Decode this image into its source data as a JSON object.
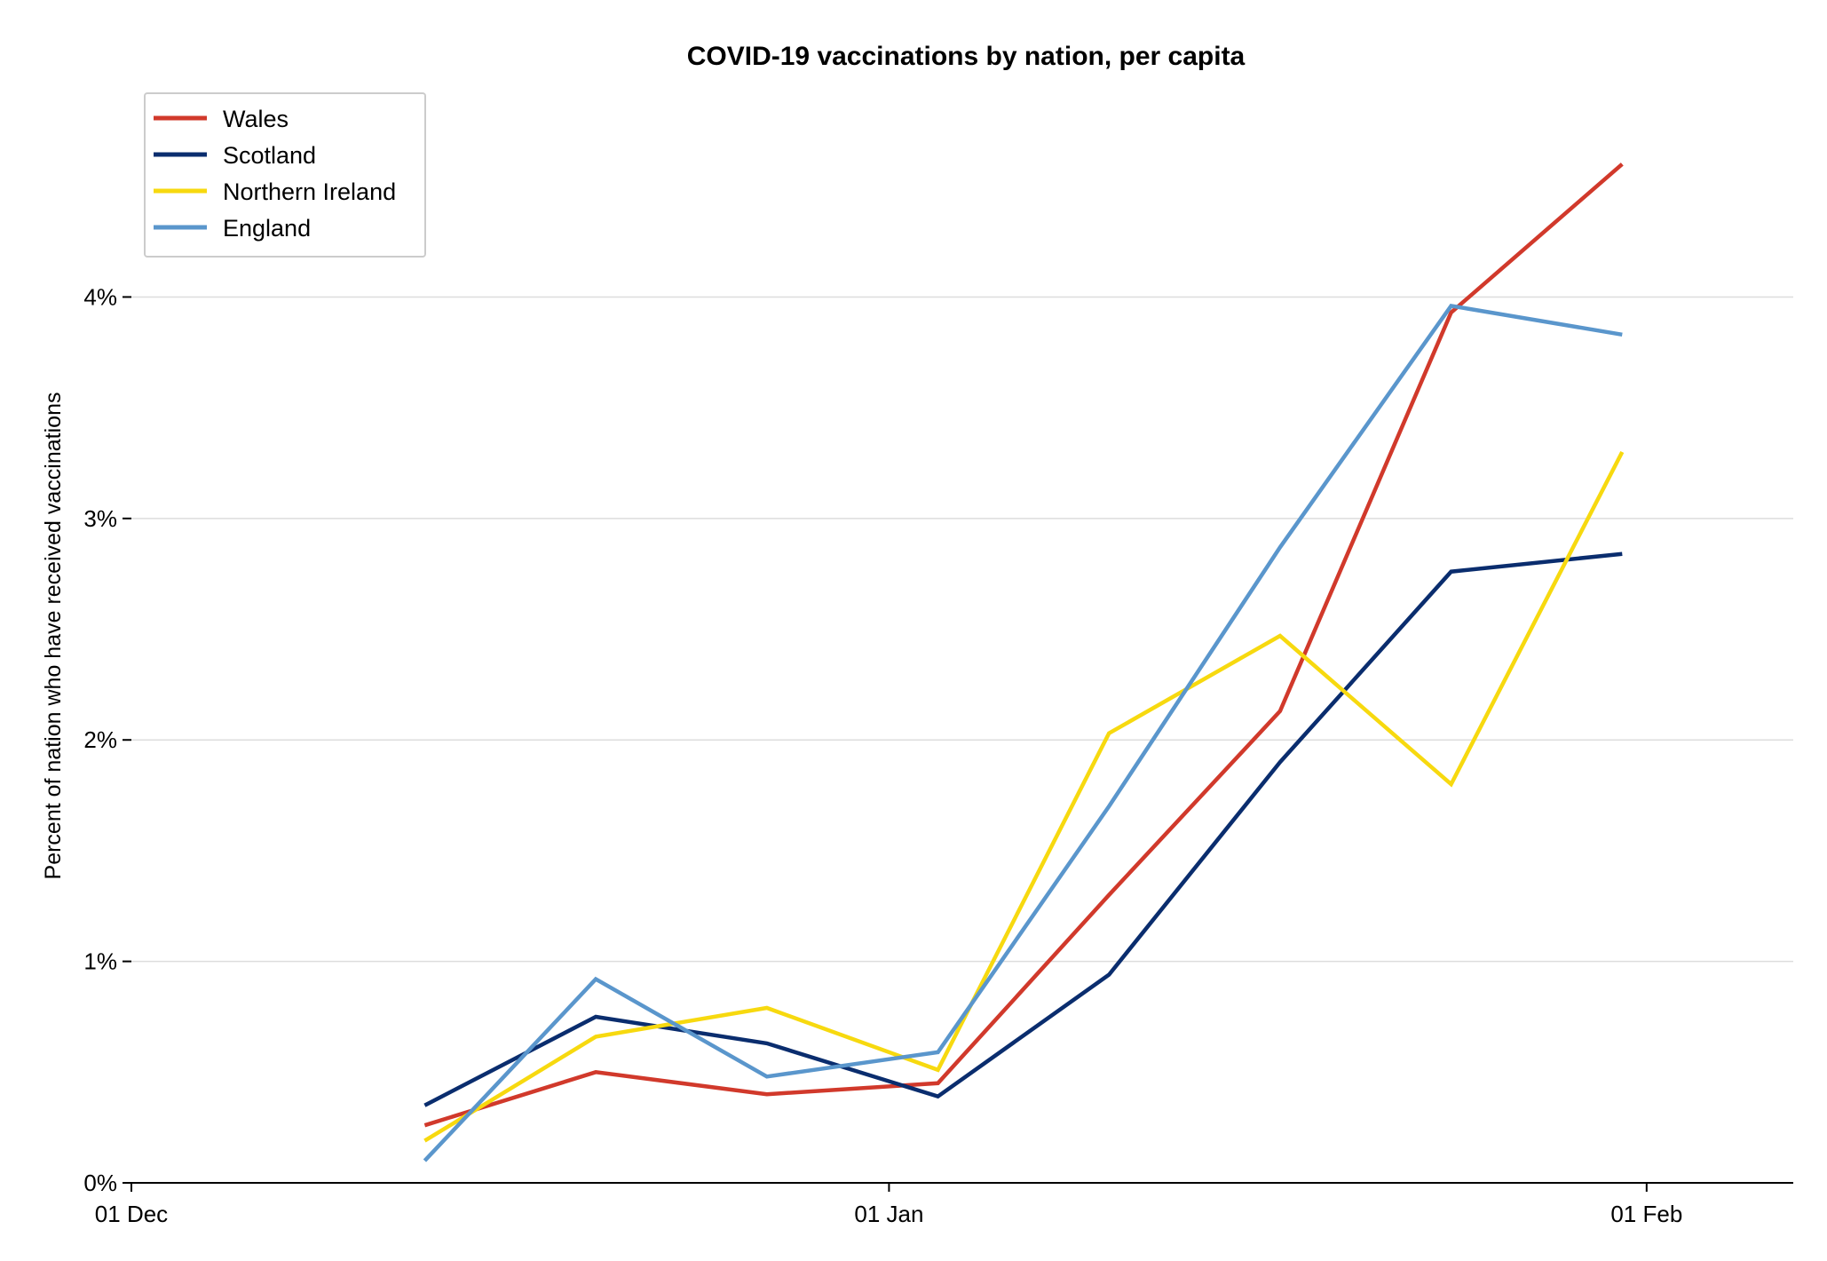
{
  "chart_data": {
    "type": "line",
    "title": "COVID-19 vaccinations by nation, per capita",
    "xlabel": "",
    "ylabel": "Percent of nation who have received vaccinations",
    "x": [
      "2020-12-13",
      "2020-12-20",
      "2020-12-27",
      "2021-01-03",
      "2021-01-10",
      "2021-01-17",
      "2021-01-24",
      "2021-01-31"
    ],
    "xlim": [
      "2020-12-01",
      "2021-02-07"
    ],
    "ylim": [
      0,
      4.9
    ],
    "grid": "horizontal",
    "legend_position": "top-left",
    "x_ticks": [
      {
        "date": "2020-12-01",
        "label": "01 Dec"
      },
      {
        "date": "2021-01-01",
        "label": "01 Jan"
      },
      {
        "date": "2021-02-01",
        "label": "01 Feb"
      }
    ],
    "y_ticks": [
      {
        "value": 0,
        "label": "0%"
      },
      {
        "value": 1,
        "label": "1%"
      },
      {
        "value": 2,
        "label": "2%"
      },
      {
        "value": 3,
        "label": "3%"
      },
      {
        "value": 4,
        "label": "4%"
      }
    ],
    "series": [
      {
        "name": "Wales",
        "color": "#d1392b",
        "values": [
          0.26,
          0.5,
          0.4,
          0.45,
          1.3,
          2.13,
          3.93,
          4.6
        ]
      },
      {
        "name": "Scotland",
        "color": "#0a2d6e",
        "values": [
          0.35,
          0.75,
          0.63,
          0.39,
          0.94,
          1.9,
          2.76,
          2.84
        ]
      },
      {
        "name": "Northern Ireland",
        "color": "#f7d90f",
        "values": [
          0.19,
          0.66,
          0.79,
          0.51,
          2.03,
          2.47,
          1.8,
          3.3
        ]
      },
      {
        "name": "England",
        "color": "#5a96cc",
        "values": [
          0.1,
          0.92,
          0.48,
          0.59,
          1.7,
          2.87,
          3.96,
          3.83
        ]
      }
    ]
  }
}
